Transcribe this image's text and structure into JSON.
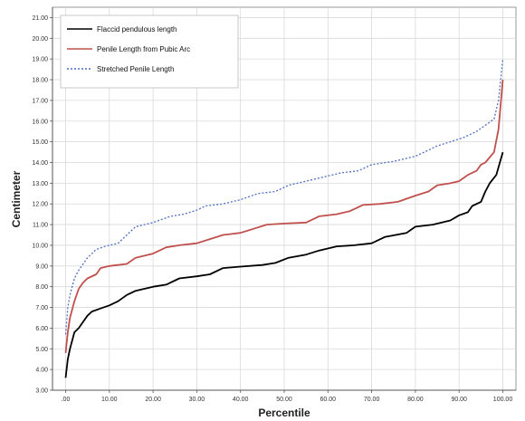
{
  "chart_data": {
    "type": "line",
    "title": "",
    "xlabel": "Percentile",
    "ylabel": "Centimeter",
    "xlim": [
      -3,
      103
    ],
    "ylim": [
      3,
      21.5
    ],
    "x_ticks": [
      0,
      10,
      20,
      30,
      40,
      50,
      60,
      70,
      80,
      90,
      100
    ],
    "x_tick_labels": [
      ".00",
      "10.00",
      "20.00",
      "30.00",
      "40.00",
      "50.00",
      "60.00",
      "70.00",
      "80.00",
      "90.00",
      "100.00"
    ],
    "y_ticks": [
      3,
      4,
      5,
      6,
      7,
      8,
      9,
      10,
      11,
      12,
      13,
      14,
      15,
      16,
      17,
      18,
      19,
      20,
      21
    ],
    "y_tick_labels": [
      "3.00",
      "4.00",
      "5.00",
      "6.00",
      "7.00",
      "8.00",
      "9.00",
      "10.00",
      "11.00",
      "12.00",
      "13.00",
      "14.00",
      "15.00",
      "16.00",
      "17.00",
      "18.00",
      "19.00",
      "20.00",
      "21.00"
    ],
    "grid": true,
    "legend_position": "top-left",
    "series": [
      {
        "name": "Flaccid pendulous length",
        "color": "#000000",
        "style": "solid",
        "points": [
          [
            0,
            3.6
          ],
          [
            0.5,
            4.5
          ],
          [
            1,
            5.0
          ],
          [
            2,
            5.8
          ],
          [
            3,
            6.0
          ],
          [
            4,
            6.3
          ],
          [
            5,
            6.6
          ],
          [
            6,
            6.8
          ],
          [
            8,
            6.95
          ],
          [
            10,
            7.1
          ],
          [
            12,
            7.3
          ],
          [
            14,
            7.6
          ],
          [
            16,
            7.8
          ],
          [
            18,
            7.9
          ],
          [
            20,
            8.0
          ],
          [
            23,
            8.1
          ],
          [
            26,
            8.4
          ],
          [
            30,
            8.5
          ],
          [
            33,
            8.6
          ],
          [
            36,
            8.9
          ],
          [
            40,
            8.97
          ],
          [
            45,
            9.05
          ],
          [
            48,
            9.15
          ],
          [
            51,
            9.4
          ],
          [
            55,
            9.55
          ],
          [
            58,
            9.75
          ],
          [
            62,
            9.95
          ],
          [
            66,
            10.0
          ],
          [
            70,
            10.1
          ],
          [
            73,
            10.4
          ],
          [
            78,
            10.6
          ],
          [
            80,
            10.9
          ],
          [
            84,
            11.0
          ],
          [
            88,
            11.2
          ],
          [
            90,
            11.45
          ],
          [
            92,
            11.6
          ],
          [
            93,
            11.9
          ],
          [
            95,
            12.1
          ],
          [
            96,
            12.6
          ],
          [
            97,
            13.0
          ],
          [
            98.5,
            13.4
          ],
          [
            100,
            14.5
          ]
        ]
      },
      {
        "name": "Penile Length from Pubic Arc",
        "color": "#c0504d",
        "style": "solid",
        "points": [
          [
            0,
            4.8
          ],
          [
            0.5,
            5.8
          ],
          [
            1,
            6.5
          ],
          [
            2,
            7.3
          ],
          [
            3,
            7.9
          ],
          [
            4,
            8.2
          ],
          [
            5,
            8.4
          ],
          [
            7,
            8.6
          ],
          [
            8,
            8.9
          ],
          [
            10,
            9.0
          ],
          [
            14,
            9.1
          ],
          [
            16,
            9.4
          ],
          [
            20,
            9.6
          ],
          [
            23,
            9.9
          ],
          [
            26,
            10.0
          ],
          [
            30,
            10.1
          ],
          [
            33,
            10.3
          ],
          [
            36,
            10.5
          ],
          [
            40,
            10.6
          ],
          [
            43,
            10.8
          ],
          [
            46,
            11.0
          ],
          [
            50,
            11.05
          ],
          [
            55,
            11.1
          ],
          [
            58,
            11.4
          ],
          [
            62,
            11.5
          ],
          [
            65,
            11.65
          ],
          [
            68,
            11.95
          ],
          [
            72,
            12.0
          ],
          [
            76,
            12.1
          ],
          [
            80,
            12.4
          ],
          [
            83,
            12.6
          ],
          [
            85,
            12.9
          ],
          [
            88,
            13.0
          ],
          [
            90,
            13.1
          ],
          [
            92,
            13.4
          ],
          [
            94,
            13.6
          ],
          [
            95,
            13.9
          ],
          [
            96,
            14.0
          ],
          [
            98,
            14.5
          ],
          [
            99,
            15.6
          ],
          [
            100,
            18.0
          ]
        ]
      },
      {
        "name": "Stretched Penile Length",
        "color": "#4f6fbf",
        "style": "dotted",
        "points": [
          [
            0,
            5.7
          ],
          [
            0.5,
            7.0
          ],
          [
            1,
            7.6
          ],
          [
            2,
            8.4
          ],
          [
            3,
            8.8
          ],
          [
            4,
            9.1
          ],
          [
            5,
            9.4
          ],
          [
            7,
            9.8
          ],
          [
            9,
            9.95
          ],
          [
            12,
            10.1
          ],
          [
            14,
            10.5
          ],
          [
            16,
            10.9
          ],
          [
            20,
            11.1
          ],
          [
            24,
            11.4
          ],
          [
            27,
            11.5
          ],
          [
            30,
            11.7
          ],
          [
            32,
            11.9
          ],
          [
            36,
            12.0
          ],
          [
            40,
            12.2
          ],
          [
            44,
            12.5
          ],
          [
            48,
            12.6
          ],
          [
            51,
            12.9
          ],
          [
            55,
            13.1
          ],
          [
            59,
            13.3
          ],
          [
            63,
            13.5
          ],
          [
            67,
            13.6
          ],
          [
            70,
            13.9
          ],
          [
            75,
            14.05
          ],
          [
            80,
            14.3
          ],
          [
            82,
            14.5
          ],
          [
            85,
            14.8
          ],
          [
            88,
            15.0
          ],
          [
            91,
            15.2
          ],
          [
            94,
            15.5
          ],
          [
            96,
            15.8
          ],
          [
            98,
            16.1
          ],
          [
            99,
            17.0
          ],
          [
            100,
            19.0
          ]
        ]
      }
    ]
  }
}
